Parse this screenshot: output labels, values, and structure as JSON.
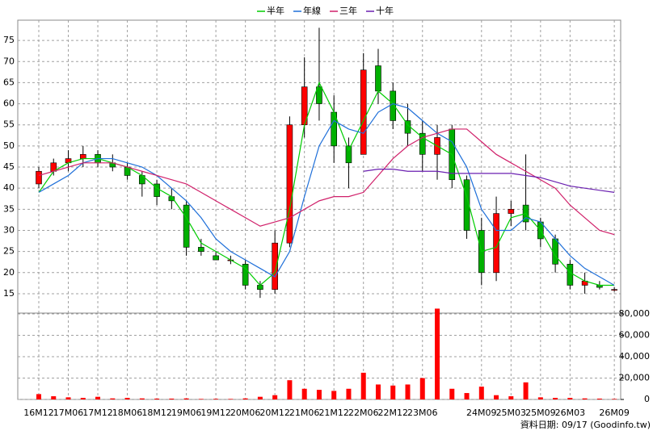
{
  "chart_data": {
    "type": "candlestick",
    "categories": [
      "16M12",
      null,
      "17M06",
      null,
      "17M12",
      null,
      "18M06",
      null,
      "18M12",
      null,
      "19M06",
      null,
      "19M12",
      null,
      "20M06",
      null,
      "20M12",
      null,
      "21M06",
      null,
      "21M12",
      null,
      "22M06",
      null,
      "22M12",
      null,
      "23M06",
      null,
      null,
      null,
      "24M09",
      null,
      "25M03",
      null,
      "25M09",
      null,
      "26M03",
      null,
      null,
      "26M09"
    ],
    "open": [
      41,
      44,
      46,
      47,
      48,
      46,
      45,
      43,
      41,
      38,
      36,
      26,
      24,
      23,
      22,
      17,
      16,
      27,
      55,
      64,
      58,
      50,
      48,
      69,
      63,
      56,
      53,
      48,
      54,
      42,
      30,
      20,
      34,
      36,
      32,
      28,
      22,
      17,
      17,
      16
    ],
    "high": [
      45,
      47,
      49,
      50,
      49,
      48,
      46,
      44,
      42,
      40,
      37,
      28,
      25,
      24,
      23,
      18,
      30,
      57,
      71,
      78,
      62,
      52,
      72,
      73,
      65,
      60,
      56,
      55,
      55,
      43,
      33,
      38,
      37,
      48,
      33,
      29,
      23,
      20,
      18,
      16.5
    ],
    "low": [
      40,
      43,
      44,
      45,
      45,
      44,
      42,
      38,
      36,
      35,
      24,
      24,
      23,
      22,
      16,
      14,
      15,
      26,
      52,
      56,
      46,
      40,
      48,
      60,
      54,
      50,
      44,
      42,
      40,
      28,
      17,
      18,
      31,
      30,
      26,
      20,
      16,
      15,
      16,
      15.5
    ],
    "close": [
      44,
      46,
      47,
      48,
      46,
      45,
      43,
      41,
      38,
      37,
      26,
      25,
      23,
      23,
      17,
      16,
      27,
      55,
      64,
      60,
      50,
      46,
      68,
      63,
      56,
      53,
      48,
      52,
      42,
      30,
      20,
      34,
      35,
      32,
      28,
      22,
      17,
      18,
      16.5,
      16
    ],
    "up_color": "#ff0000",
    "down_color": "#00b000",
    "ylim": [
      10.4,
      79.8
    ],
    "yticks": [
      15,
      20,
      25,
      30,
      35,
      40,
      45,
      50,
      55,
      60,
      65,
      70,
      75
    ],
    "series": [
      {
        "name": "半年",
        "color": "#00cc00",
        "values": [
          39,
          44,
          46,
          47,
          47,
          46,
          45,
          43,
          40,
          38,
          33,
          27,
          25,
          23,
          21,
          17,
          20,
          35,
          55,
          65,
          58,
          49,
          56,
          63,
          60,
          55,
          52,
          50,
          48,
          38,
          25,
          26,
          33,
          34,
          30,
          24,
          20,
          18,
          17,
          17
        ]
      },
      {
        "name": "年線",
        "color": "#1e6fd9",
        "values": [
          39,
          41,
          43,
          46,
          47,
          47,
          46,
          45,
          43,
          40,
          37,
          33,
          28,
          25,
          23,
          21,
          19,
          25,
          38,
          50,
          56,
          54,
          53,
          58,
          60,
          59,
          56,
          53,
          51,
          45,
          35,
          30,
          30,
          33,
          32,
          28,
          24,
          21,
          19,
          17
        ]
      },
      {
        "name": "三年",
        "color": "#d0206a",
        "values": [
          43,
          44,
          45,
          46,
          46,
          46,
          45,
          44,
          43,
          42,
          41,
          39,
          37,
          35,
          33,
          31,
          32,
          33,
          35,
          37,
          38,
          38,
          39,
          43,
          47,
          50,
          52,
          53,
          54,
          54,
          51,
          48,
          46,
          44,
          42,
          40,
          36,
          33,
          30,
          29
        ]
      },
      {
        "name": "十年",
        "color": "#6a1fb0",
        "values": [
          null,
          null,
          null,
          null,
          null,
          null,
          null,
          null,
          null,
          null,
          null,
          null,
          null,
          null,
          null,
          null,
          null,
          null,
          null,
          null,
          null,
          null,
          44,
          44.5,
          44.5,
          44,
          44,
          44,
          43.5,
          43.5,
          43.5,
          43.5,
          43.5,
          43,
          42.5,
          41.5,
          40.5,
          40,
          39.5,
          39
        ]
      }
    ],
    "volume": {
      "color": "#ff0000",
      "values": [
        5000,
        3000,
        2000,
        1500,
        2500,
        1000,
        1500,
        1000,
        800,
        800,
        1000,
        500,
        600,
        500,
        1000,
        2500,
        4000,
        18000,
        10000,
        9000,
        8000,
        10000,
        25000,
        14000,
        13000,
        14000,
        20000,
        85000,
        10000,
        6000,
        12000,
        4000,
        3000,
        16000,
        2000,
        1500,
        1500,
        1000,
        800,
        500
      ],
      "ylim": [
        0,
        80800
      ],
      "yticks": [
        0,
        {
          "value": 20000,
          "label": "20,000"
        },
        {
          "value": 40000,
          "label": "40,000"
        },
        {
          "value": 60000,
          "label": "60,000"
        },
        {
          "value": 80000,
          "label": "80,000"
        }
      ]
    },
    "grid": true,
    "note": "資料日期: 09/17 (Goodinfo.tw)"
  }
}
